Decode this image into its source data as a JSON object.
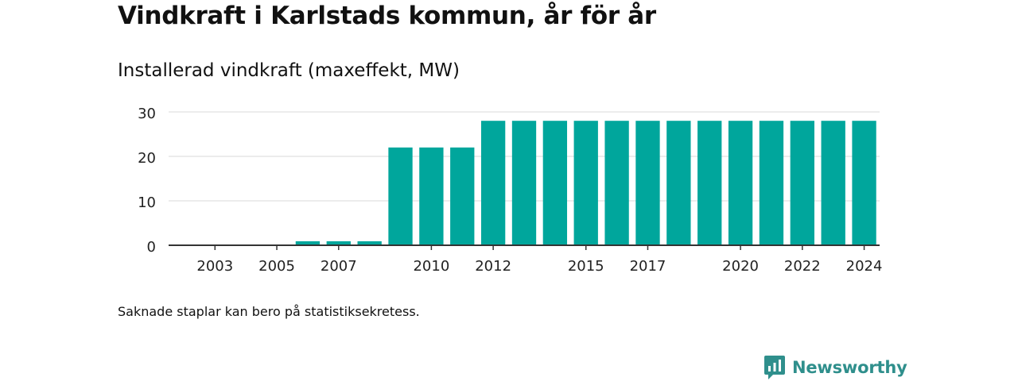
{
  "header": {
    "title": "Vindkraft i Karlstads kommun, år för år",
    "subtitle": "Installerad vindkraft (maxeffekt, MW)"
  },
  "footer": {
    "note": "Saknade staplar kan bero på statistiksekretess.",
    "brand": "Newsworthy"
  },
  "colors": {
    "bar": "#00a69c",
    "grid": "#d9d9d9",
    "axis": "#333333",
    "brand": "#2f8f8c"
  },
  "chart_data": {
    "type": "bar",
    "categories": [
      "2002",
      "2003",
      "2004",
      "2005",
      "2006",
      "2007",
      "2008",
      "2009",
      "2010",
      "2011",
      "2012",
      "2013",
      "2014",
      "2015",
      "2016",
      "2017",
      "2018",
      "2019",
      "2020",
      "2021",
      "2022",
      "2023",
      "2024"
    ],
    "values": [
      0,
      0,
      0,
      0,
      0.9,
      0.9,
      0.9,
      22,
      22,
      22,
      28,
      28,
      28,
      28,
      28,
      28,
      28,
      28,
      28,
      28,
      28,
      28,
      28
    ],
    "tick_labels_x": [
      "2003",
      "2005",
      "2007",
      "2010",
      "2012",
      "2015",
      "2017",
      "2020",
      "2022",
      "2024"
    ],
    "yticks": [
      0,
      10,
      20,
      30
    ],
    "ylim": [
      0,
      30
    ],
    "grid": true,
    "legend": "none"
  }
}
